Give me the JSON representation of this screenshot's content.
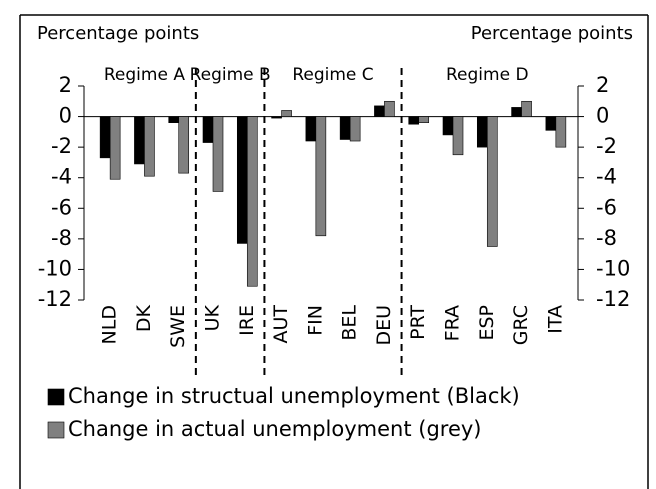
{
  "chart_data": {
    "type": "bar",
    "y_label": "Percentage points",
    "y2_label": "Percentage points",
    "regimes": [
      "Regime A",
      "Regime B",
      "Regime C",
      "Regime D"
    ],
    "categories": [
      "NLD",
      "DK",
      "SWE",
      "UK",
      "IRE",
      "AUT",
      "FIN",
      "BEL",
      "DEU",
      "PRT",
      "FRA",
      "ESP",
      "GRC",
      "ITA"
    ],
    "series": [
      {
        "name": "Change in structual unemployment (Black)",
        "color": "#000000",
        "values": [
          -2.7,
          -3.1,
          -0.4,
          -1.7,
          -8.3,
          -0.1,
          -1.6,
          -1.5,
          0.7,
          -0.5,
          -1.2,
          -2.0,
          0.6,
          -0.9
        ]
      },
      {
        "name": "Change in actual unemployment (grey)",
        "color": "#808080",
        "values": [
          -4.1,
          -3.9,
          -3.7,
          -4.9,
          -11.1,
          0.4,
          -7.8,
          -1.6,
          1.0,
          -0.4,
          -2.5,
          -8.5,
          1.0,
          -2.0
        ]
      }
    ],
    "ylim": [
      -12,
      2
    ],
    "yticks": [
      2,
      0,
      -2,
      -4,
      -6,
      -8,
      -10,
      -12
    ],
    "y2lim": [
      -12,
      2
    ],
    "y2ticks": [
      2,
      0,
      -2,
      -4,
      -6,
      -8,
      -10,
      -12
    ],
    "grid": false
  }
}
